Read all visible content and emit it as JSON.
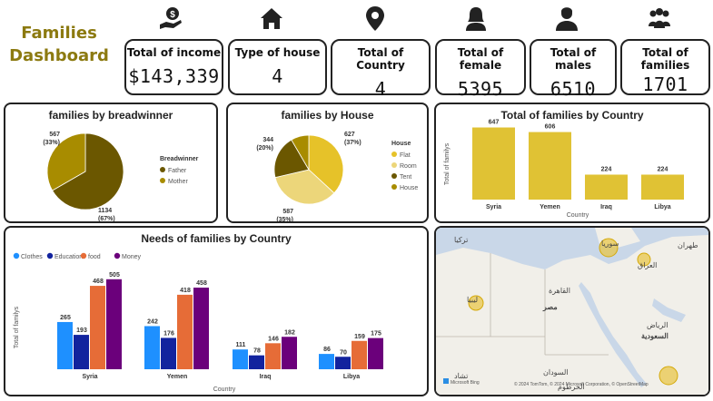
{
  "dashboard": {
    "title_line1": "Families",
    "title_line2": "Dashboard"
  },
  "kpis": [
    {
      "label": "Total of income",
      "value": "$143,339",
      "icon": "money-hand-icon"
    },
    {
      "label": "Type of house",
      "value": "4",
      "icon": "house-icon"
    },
    {
      "label": "Total of Country",
      "value": "4",
      "icon": "location-pin-icon"
    },
    {
      "label": "Total of female",
      "value": "5395",
      "icon": "woman-icon"
    },
    {
      "label": "Total of males",
      "value": "6510",
      "icon": "man-icon"
    },
    {
      "label": "Total of families",
      "value": "1701",
      "icon": "group-icon"
    }
  ],
  "colors": {
    "title": "#8c7a10",
    "father": "#6b5700",
    "mother": "#a88c00",
    "flat": "#e6c229",
    "room": "#ecd67a",
    "tent": "#6b5700",
    "house": "#a88c00",
    "bar_gold": "#e0c234",
    "clothes": "#1e90ff",
    "education": "#12239e",
    "food": "#e66c37",
    "money": "#6b007b",
    "map_bubble": "#e8c440"
  },
  "chart_data": [
    {
      "type": "pie",
      "title": "families by breadwinner",
      "legend_title": "Breadwinner",
      "legend_position": "right",
      "labels": [
        "Father",
        "Mother"
      ],
      "values": [
        1134,
        567
      ],
      "data_labels": [
        "1134 (67%)",
        "567 (33%)"
      ]
    },
    {
      "type": "pie",
      "title": "families by House",
      "legend_title": "House",
      "legend_position": "right",
      "labels": [
        "Flat",
        "Room",
        "Tent",
        "House"
      ],
      "values": [
        627,
        587,
        344,
        143
      ],
      "data_labels": [
        "627 (37%)",
        "587 (35%)",
        "344 (20%)",
        ""
      ]
    },
    {
      "type": "bar",
      "title": "Total of families by Country",
      "xlabel": "Country",
      "ylabel": "Total of familys",
      "categories": [
        "Syria",
        "Yemen",
        "Iraq",
        "Libya"
      ],
      "values": [
        647,
        606,
        224,
        224
      ],
      "ylim": [
        0,
        700
      ]
    },
    {
      "type": "bar",
      "title": "Needs of families by Country",
      "xlabel": "Country",
      "ylabel": "Total of familys",
      "legend_position": "top-left",
      "categories": [
        "Syria",
        "Yemen",
        "Iraq",
        "Libya"
      ],
      "series": [
        {
          "name": "Clothes",
          "values": [
            265,
            242,
            111,
            86
          ]
        },
        {
          "name": "Education",
          "values": [
            193,
            176,
            78,
            70
          ]
        },
        {
          "name": "food",
          "values": [
            468,
            418,
            146,
            159
          ]
        },
        {
          "name": "Money",
          "values": [
            505,
            458,
            182,
            175
          ]
        }
      ],
      "ylim": [
        0,
        560
      ]
    }
  ],
  "map": {
    "labels": [
      {
        "text": "تركيا"
      },
      {
        "text": "سوريا"
      },
      {
        "text": "العراق"
      },
      {
        "text": "طهران"
      },
      {
        "text": "ليبيا"
      },
      {
        "text": "القاهرة"
      },
      {
        "text": "مصر"
      },
      {
        "text": "الرياض"
      },
      {
        "text": "السعودية"
      },
      {
        "text": "السودان"
      },
      {
        "text": "تشاد"
      },
      {
        "text": "الخرطوم"
      }
    ],
    "attribution": "© 2024 TomTom, © 2024 Microsoft Corporation, © OpenStreetMap",
    "logo": "Microsoft Bing"
  }
}
